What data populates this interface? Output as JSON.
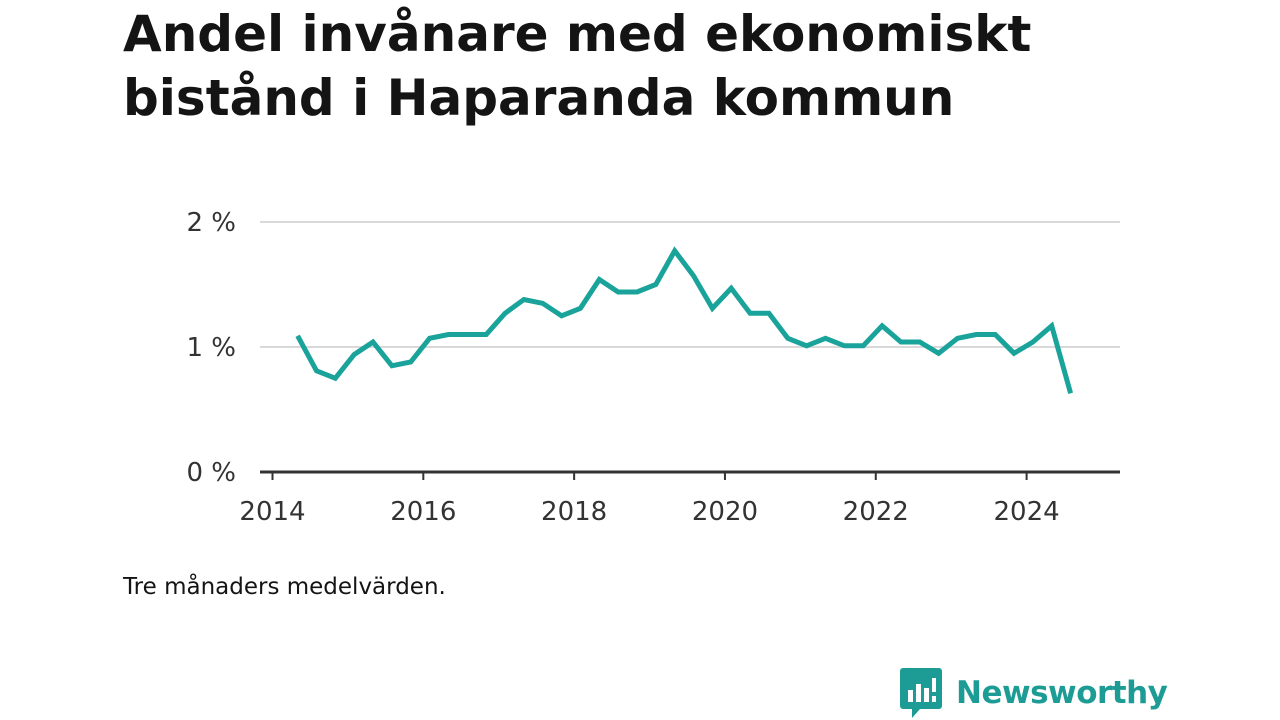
{
  "title": "Andel invånare med ekonomiskt bistånd i Haparanda kommun",
  "caption": "Tre månaders medelvärden.",
  "brand": {
    "name": "Newsworthy",
    "icon": "bar-chart-speech-bubble-icon",
    "color": "#1c9c94"
  },
  "colors": {
    "line": "#1aa39a",
    "grid": "#d9d9d9",
    "axis": "#333333"
  },
  "chart_data": {
    "type": "line",
    "title": "Andel invånare med ekonomiskt bistånd i Haparanda kommun",
    "xlabel": "",
    "ylabel": "",
    "xlim": [
      2013.85,
      2025.15
    ],
    "ylim": [
      0,
      2
    ],
    "grid": true,
    "x_ticks": [
      2014,
      2016,
      2018,
      2020,
      2022,
      2024
    ],
    "y_ticks": [
      {
        "value": 0,
        "label": "0 %"
      },
      {
        "value": 1,
        "label": "1 %"
      },
      {
        "value": 2,
        "label": "2 %"
      }
    ],
    "series": [
      {
        "x": [
          "2014-05",
          "2014-08",
          "2014-11",
          "2015-02",
          "2015-05",
          "2015-08",
          "2015-11",
          "2016-02",
          "2016-05",
          "2016-08",
          "2016-11",
          "2017-02",
          "2017-05",
          "2017-08",
          "2017-11",
          "2018-02",
          "2018-05",
          "2018-08",
          "2018-11",
          "2019-02",
          "2019-05",
          "2019-08",
          "2019-11",
          "2020-02",
          "2020-05",
          "2020-08",
          "2020-11",
          "2021-02",
          "2021-05",
          "2021-08",
          "2021-11",
          "2022-02",
          "2022-05",
          "2022-08",
          "2022-11",
          "2023-02",
          "2023-05",
          "2023-08",
          "2023-11",
          "2024-02",
          "2024-05",
          "2024-08"
        ],
        "values": [
          1.09,
          0.81,
          0.75,
          0.94,
          1.04,
          0.85,
          0.88,
          1.07,
          1.1,
          1.1,
          1.1,
          1.27,
          1.38,
          1.35,
          1.25,
          1.31,
          1.54,
          1.44,
          1.44,
          1.5,
          1.77,
          1.57,
          1.31,
          1.47,
          1.27,
          1.27,
          1.07,
          1.01,
          1.07,
          1.01,
          1.01,
          1.17,
          1.04,
          1.04,
          0.95,
          1.07,
          1.1,
          1.1,
          0.95,
          1.04,
          1.17,
          0.63
        ]
      }
    ]
  }
}
